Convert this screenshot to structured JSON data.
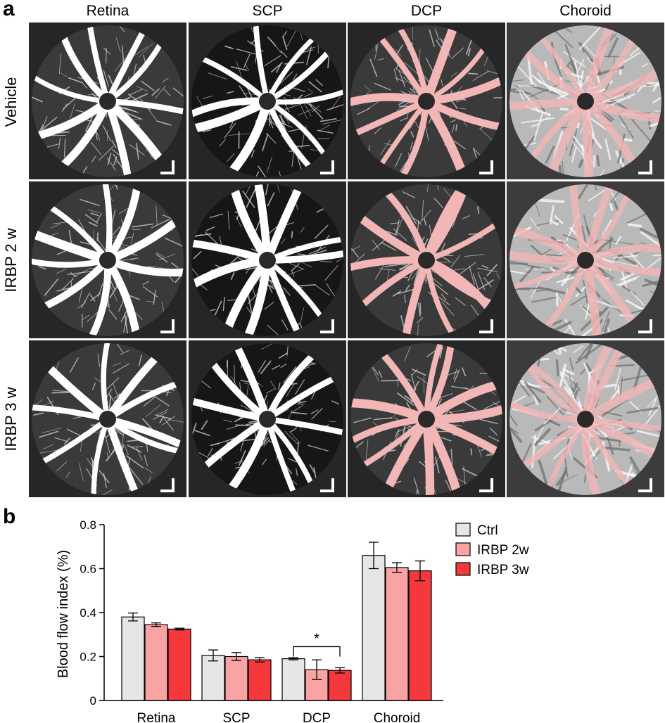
{
  "panel_a": {
    "letter": "a",
    "columns": [
      "Retina",
      "SCP",
      "DCP",
      "Choroid"
    ],
    "rows": [
      "Vehicle",
      "IRBP 2 w",
      "IRBP 3 w"
    ]
  },
  "panel_b": {
    "letter": "b"
  },
  "colors": {
    "ctrl": "#e6e6e6",
    "irbp2w": "#f9a3a4",
    "irbp3w": "#f5383c",
    "vessel_tint": "#f2b6b6"
  },
  "chart_data": {
    "type": "bar",
    "categories": [
      "Retina",
      "SCP",
      "DCP",
      "Choroid"
    ],
    "series": [
      {
        "name": "Ctrl",
        "values": [
          0.38,
          0.205,
          0.19,
          0.66
        ],
        "errors": [
          0.018,
          0.025,
          0.005,
          0.06
        ]
      },
      {
        "name": "IRBP 2w",
        "values": [
          0.345,
          0.2,
          0.14,
          0.605
        ],
        "errors": [
          0.008,
          0.018,
          0.045,
          0.022
        ]
      },
      {
        "name": "IRBP 3w",
        "values": [
          0.325,
          0.185,
          0.137,
          0.59
        ],
        "errors": [
          0.004,
          0.01,
          0.012,
          0.045
        ]
      }
    ],
    "ylabel": "Blood flow index (%)",
    "ylim": [
      0,
      0.8
    ],
    "yticks": [
      "0",
      "0.2",
      "0.4",
      "0.6",
      "0.8"
    ],
    "annotation": {
      "text": "*",
      "category": "DCP",
      "between": [
        "Ctrl",
        "IRBP 3w"
      ]
    },
    "legend": "top-right"
  }
}
